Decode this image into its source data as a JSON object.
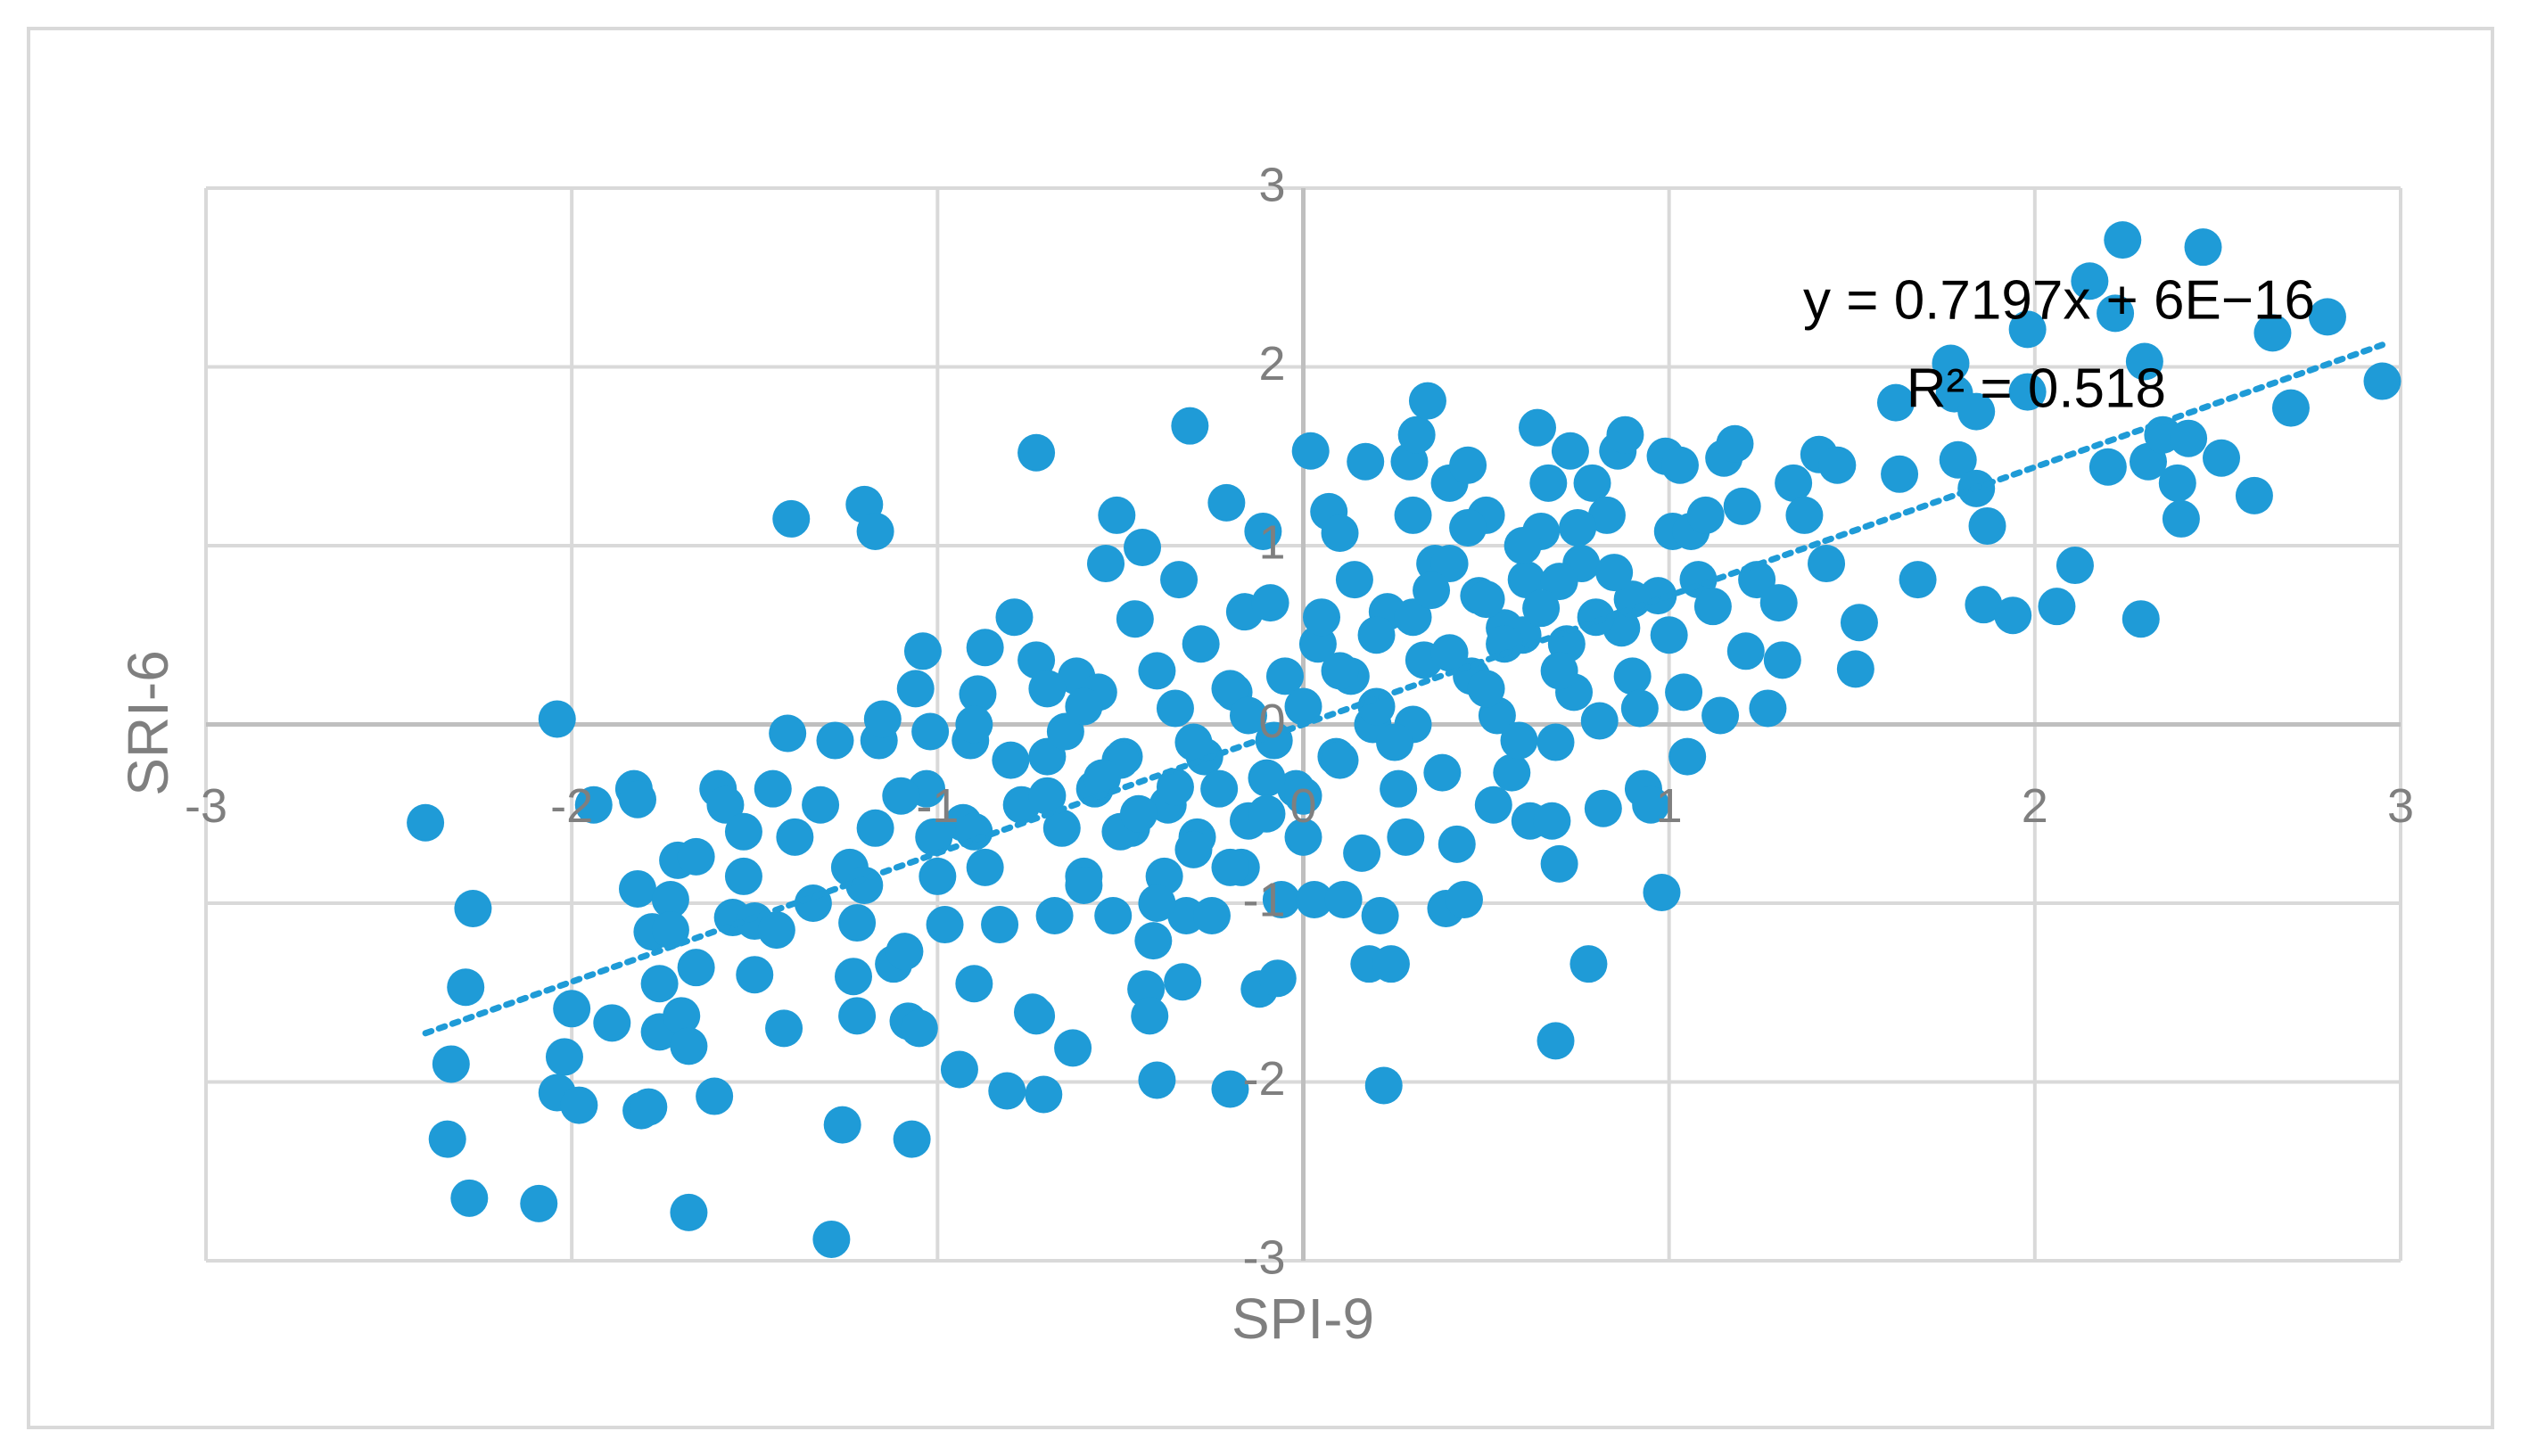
{
  "chart_data": {
    "type": "scatter",
    "x_label": "SPI-9",
    "y_label": "SRI-6",
    "annotations": [
      "y = 0.7197x + 6E−16",
      "R² = 0.518"
    ],
    "trendline": {
      "slope": 0.7197,
      "intercept": 6e-16
    },
    "color": "#1f9bd7",
    "xlim": [
      -3,
      3
    ],
    "ylim": [
      -3,
      3
    ],
    "xticks": [
      -3,
      -2,
      -1,
      0,
      1,
      2,
      3
    ],
    "yticks": [
      -3,
      -2,
      -1,
      0,
      1,
      2,
      3
    ],
    "grid": true,
    "x": [
      -2.4,
      -2.27,
      -2.29,
      -2.33,
      -2.34,
      -2.28,
      -2.09,
      -2.04,
      -2.0,
      -2.02,
      -2.04,
      -1.98,
      -1.94,
      -1.89,
      -1.83,
      -1.82,
      -1.82,
      -1.81,
      -1.79,
      -1.78,
      -1.76,
      -1.76,
      -1.73,
      -1.73,
      -1.7,
      -1.68,
      -1.68,
      -1.71,
      -1.66,
      -1.66,
      -1.61,
      -1.6,
      -1.58,
      -1.53,
      -1.53,
      -1.56,
      -1.5,
      -1.5,
      -1.45,
      -1.44,
      -1.42,
      -1.41,
      -1.4,
      -1.39,
      -1.34,
      -1.32,
      -1.28,
      -1.26,
      -1.29,
      -1.24,
      -1.23,
      -1.22,
      -1.22,
      -1.2,
      -1.17,
      -1.17,
      -1.16,
      -1.15,
      -1.12,
      -1.09,
      -1.07,
      -1.08,
      -1.05,
      -1.04,
      -1.06,
      -1.02,
      -1.03,
      -1.01,
      -1.0,
      -0.98,
      -0.94,
      -0.93,
      -0.91,
      -0.9,
      -0.89,
      -0.87,
      -0.87,
      -0.83,
      -0.81,
      -0.79,
      -0.77,
      -0.74,
      -0.73,
      -0.73,
      -0.73,
      -0.71,
      -0.7,
      -0.68,
      -0.66,
      -0.65,
      -0.63,
      -0.62,
      -0.6,
      -0.57,
      -0.56,
      -0.54,
      -0.52,
      -0.51,
      -0.49,
      -0.47,
      -0.46,
      -0.44,
      -0.43,
      -0.42,
      -0.41,
      -0.4,
      -0.38,
      -0.37,
      -0.35,
      -0.34,
      -0.33,
      -0.32,
      -0.31,
      -0.29,
      -0.28,
      -0.27,
      -0.25,
      -0.23,
      -0.21,
      -0.2,
      -0.19,
      -0.17,
      -0.16,
      -0.15,
      -0.12,
      -0.11,
      -0.09,
      -0.08,
      -0.07,
      -0.06,
      -0.05,
      -0.02,
      0.0,
      0.02,
      0.03,
      0.04,
      0.07,
      0.09,
      0.1,
      0.11,
      0.13,
      0.14,
      0.16,
      0.17,
      0.18,
      0.19,
      0.21,
      0.22,
      0.23,
      0.24,
      0.26,
      0.28,
      0.29,
      0.3,
      0.31,
      0.33,
      0.34,
      0.36,
      0.38,
      0.39,
      0.4,
      0.42,
      0.44,
      0.45,
      0.46,
      0.48,
      0.5,
      0.52,
      0.53,
      0.55,
      0.57,
      0.59,
      0.61,
      0.62,
      0.64,
      0.65,
      0.67,
      0.68,
      0.69,
      0.69,
      0.7,
      0.72,
      0.73,
      0.74,
      0.76,
      0.78,
      0.79,
      0.81,
      0.82,
      0.83,
      0.86,
      0.87,
      0.88,
      0.9,
      0.92,
      0.93,
      0.95,
      0.97,
      0.98,
      0.99,
      1.01,
      1.03,
      1.04,
      1.05,
      1.06,
      1.08,
      1.1,
      1.12,
      1.14,
      1.15,
      1.18,
      1.2,
      1.21,
      1.24,
      1.27,
      1.3,
      1.31,
      1.34,
      1.37,
      1.41,
      1.43,
      1.46,
      1.51,
      1.52,
      1.62,
      1.63,
      1.68,
      1.77,
      1.78,
      1.79,
      1.84,
      1.84,
      1.86,
      1.87,
      1.94,
      1.98,
      1.98,
      2.06,
      2.11,
      2.15,
      2.2,
      2.22,
      2.24,
      2.29,
      2.3,
      2.31,
      2.35,
      2.39,
      2.4,
      2.42,
      2.46,
      2.51,
      2.6,
      2.65,
      2.7,
      2.8,
      2.95,
      -0.6,
      -0.5,
      -0.4,
      -0.3,
      -0.2,
      -0.1,
      0.0,
      0.1,
      0.2,
      0.3,
      0.4,
      0.5,
      0.6,
      0.7,
      0.8,
      0.5,
      0.3,
      0.1,
      -0.1,
      -0.3,
      -0.5,
      -0.7,
      -0.9,
      -0.8,
      -0.6,
      -0.4,
      -0.2,
      0.0,
      0.2,
      0.4,
      0.6,
      0.7,
      0.9,
      1.0,
      -1.1,
      -1.2,
      -0.9,
      -0.7,
      0.35,
      0.55,
      0.45,
      0.65,
      0.75,
      0.85,
      -0.35,
      -0.15,
      0.05,
      0.25,
      -0.45,
      -0.55
    ],
    "values": [
      -0.55,
      -1.03,
      -1.47,
      -1.9,
      -2.32,
      -2.65,
      -2.68,
      0.03,
      -1.59,
      -1.86,
      -2.06,
      -2.13,
      -0.45,
      -1.67,
      -0.36,
      -0.42,
      -0.92,
      -2.16,
      -2.14,
      -1.16,
      -1.45,
      -1.72,
      -0.98,
      -1.15,
      -1.63,
      -1.8,
      -2.73,
      -0.76,
      -0.74,
      -1.36,
      -2.08,
      -0.36,
      -0.45,
      -0.6,
      -0.85,
      -1.08,
      -1.4,
      -1.1,
      -0.36,
      -1.15,
      -1.7,
      -0.05,
      1.15,
      -0.63,
      -1.0,
      -0.45,
      -0.09,
      -2.24,
      -2.88,
      -0.8,
      -1.41,
      -1.63,
      -1.11,
      1.23,
      1.08,
      -0.58,
      -0.09,
      0.03,
      -1.34,
      -1.27,
      -2.32,
      -1.66,
      -1.7,
      0.41,
      0.2,
      -0.04,
      -0.36,
      -0.63,
      -0.85,
      -1.12,
      -1.93,
      -0.55,
      -0.09,
      -1.45,
      0.17,
      0.43,
      -0.8,
      -1.12,
      -2.05,
      0.6,
      -0.45,
      -1.61,
      1.52,
      -1.63,
      0.36,
      -2.07,
      -0.18,
      -1.07,
      -0.58,
      -0.04,
      -1.81,
      0.27,
      -0.85,
      -0.36,
      0.18,
      0.9,
      -1.07,
      1.17,
      -0.18,
      -0.58,
      0.59,
      0.99,
      -1.48,
      -1.63,
      -1.21,
      -1.99,
      -0.85,
      -0.45,
      0.09,
      0.81,
      -1.44,
      -1.07,
      1.67,
      -0.63,
      0.45,
      -0.18,
      -1.07,
      -0.36,
      1.24,
      -2.04,
      0.18,
      -0.8,
      0.63,
      -0.54,
      -1.48,
      1.08,
      0.68,
      -0.09,
      -1.42,
      -0.98,
      0.27,
      -0.36,
      -0.63,
      1.53,
      -0.98,
      0.45,
      1.19,
      -0.18,
      1.07,
      -0.98,
      0.27,
      0.81,
      -0.72,
      1.47,
      -1.34,
      0.0,
      -1.07,
      -2.02,
      0.63,
      -1.34,
      -0.36,
      -0.63,
      1.47,
      1.17,
      1.62,
      0.36,
      1.81,
      0.9,
      -0.27,
      -1.03,
      1.35,
      -0.67,
      -0.98,
      1.45,
      0.27,
      0.72,
      1.17,
      -0.45,
      0.05,
      0.54,
      -0.27,
      -0.09,
      0.81,
      -0.54,
      1.66,
      1.08,
      1.35,
      -0.54,
      -0.1,
      -1.77,
      -0.78,
      0.45,
      1.53,
      0.18,
      0.9,
      -1.34,
      1.35,
      0.02,
      -0.47,
      1.17,
      1.53,
      0.54,
      1.62,
      0.27,
      0.09,
      -0.36,
      -0.45,
      0.72,
      -0.94,
      1.5,
      1.08,
      1.45,
      0.18,
      -0.18,
      1.08,
      0.81,
      1.17,
      0.66,
      0.05,
      1.49,
      1.57,
      1.22,
      0.41,
      0.81,
      0.09,
      0.68,
      0.36,
      1.35,
      1.17,
      1.51,
      0.9,
      1.45,
      0.31,
      0.57,
      1.8,
      1.4,
      0.81,
      2.02,
      1.85,
      1.48,
      1.75,
      1.32,
      0.67,
      1.11,
      0.61,
      2.21,
      1.86,
      0.66,
      0.89,
      2.48,
      1.44,
      2.3,
      2.71,
      0.59,
      2.03,
      1.47,
      1.62,
      1.35,
      1.15,
      1.6,
      2.67,
      1.49,
      1.28,
      2.19,
      1.77,
      2.28,
      1.92,
      0.1,
      -0.2,
      0.3,
      -0.1,
      0.2,
      -0.3,
      0.1,
      0.3,
      0.5,
      0.6,
      0.4,
      0.7,
      0.5,
      0.8,
      0.6,
      0.2,
      0.0,
      -0.2,
      -0.5,
      -0.7,
      -0.6,
      -0.4,
      -0.6,
      -0.2,
      -0.9,
      -1.0,
      -0.8,
      -0.4,
      0.1,
      0.9,
      1.0,
      0.3,
      0.7,
      0.5,
      -0.4,
      -0.9,
      0.0,
      0.2,
      0.75,
      0.45,
      1.1,
      0.65,
      1.1,
      0.85,
      -0.35,
      0.05,
      0.6,
      -0.1,
      -0.5,
      -0.3
    ]
  }
}
